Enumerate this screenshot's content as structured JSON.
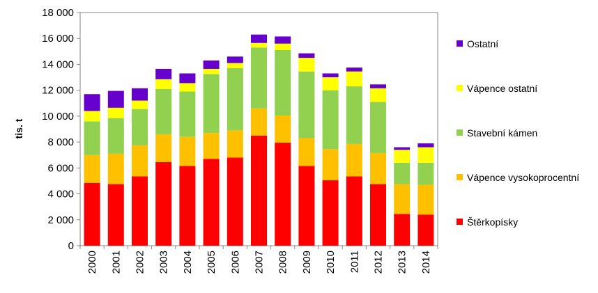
{
  "chart_data": {
    "type": "bar",
    "stacked": true,
    "title": "",
    "xlabel": "",
    "ylabel": "tis. t",
    "ylim": [
      0,
      18000
    ],
    "ytick_step": 2000,
    "ytick_labels": [
      "0",
      "2 000",
      "4 000",
      "6 000",
      "8 000",
      "10 000",
      "12 000",
      "14 000",
      "16 000",
      "18 000"
    ],
    "grid": false,
    "legend_position": "right",
    "categories": [
      "2000",
      "2001",
      "2002",
      "2003",
      "2004",
      "2005",
      "2006",
      "2007",
      "2008",
      "2009",
      "2010",
      "2011",
      "2012",
      "2013",
      "2014"
    ],
    "series": [
      {
        "name": "Štěrkopísky",
        "color": "#ff0000",
        "values": [
          4850,
          4750,
          5350,
          6450,
          6150,
          6700,
          6800,
          8500,
          7950,
          6150,
          5050,
          5350,
          4750,
          2450,
          2400
        ]
      },
      {
        "name": "Vápence vysokoprocentní",
        "color": "#ffc000",
        "values": [
          2150,
          2350,
          2400,
          2150,
          2250,
          2000,
          2100,
          2100,
          2100,
          2150,
          2400,
          2500,
          2400,
          2300,
          2300
        ]
      },
      {
        "name": "Stavební kámen",
        "color": "#92d050",
        "values": [
          2600,
          2750,
          2800,
          3500,
          3500,
          4550,
          4800,
          4700,
          5050,
          5150,
          4550,
          4450,
          3950,
          1650,
          1700
        ]
      },
      {
        "name": "Vápence ostatní",
        "color": "#ffff00",
        "values": [
          800,
          800,
          650,
          750,
          650,
          400,
          400,
          350,
          500,
          1050,
          1000,
          1150,
          1050,
          1000,
          1200
        ]
      },
      {
        "name": "Ostatní",
        "color": "#6600cc",
        "values": [
          1300,
          1300,
          950,
          800,
          750,
          650,
          500,
          650,
          550,
          350,
          300,
          300,
          300,
          200,
          300
        ]
      }
    ]
  }
}
